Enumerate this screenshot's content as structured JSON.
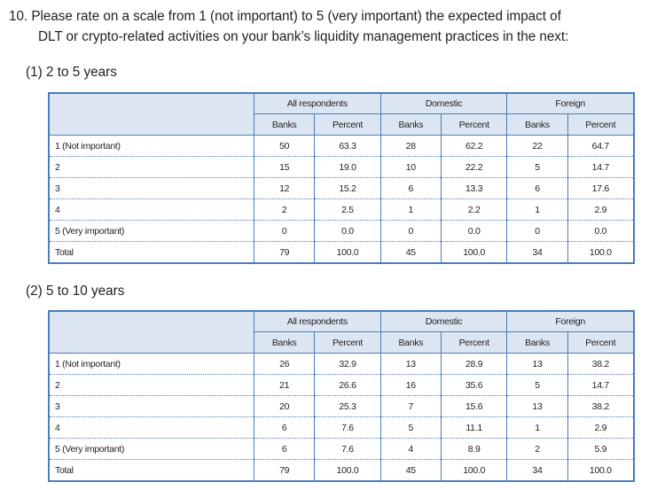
{
  "question": {
    "number": "10.",
    "line1": "Please rate on a scale from 1 (not important) to 5 (very important) the expected impact of",
    "line2": "DLT or crypto-related activities on your bank’s liquidity management practices in the next:"
  },
  "headers": {
    "groups": [
      "All respondents",
      "Domestic",
      "Foreign"
    ],
    "banks": "Banks",
    "percent": "Percent"
  },
  "sections": [
    {
      "title": "(1) 2 to 5 years",
      "rows": [
        {
          "label": "1 (Not important)",
          "values": [
            "50",
            "63.3",
            "28",
            "62.2",
            "22",
            "64.7"
          ]
        },
        {
          "label": "2",
          "values": [
            "15",
            "19.0",
            "10",
            "22.2",
            "5",
            "14.7"
          ]
        },
        {
          "label": "3",
          "values": [
            "12",
            "15.2",
            "6",
            "13.3",
            "6",
            "17.6"
          ]
        },
        {
          "label": "4",
          "values": [
            "2",
            "2.5",
            "1",
            "2.2",
            "1",
            "2.9"
          ]
        },
        {
          "label": "5 (Very important)",
          "values": [
            "0",
            "0.0",
            "0",
            "0.0",
            "0",
            "0.0"
          ]
        },
        {
          "label": "Total",
          "values": [
            "79",
            "100.0",
            "45",
            "100.0",
            "34",
            "100.0"
          ]
        }
      ]
    },
    {
      "title": "(2) 5 to 10 years",
      "rows": [
        {
          "label": "1 (Not important)",
          "values": [
            "26",
            "32.9",
            "13",
            "28.9",
            "13",
            "38.2"
          ]
        },
        {
          "label": "2",
          "values": [
            "21",
            "26.6",
            "16",
            "35.6",
            "5",
            "14.7"
          ]
        },
        {
          "label": "3",
          "values": [
            "20",
            "25.3",
            "7",
            "15.6",
            "13",
            "38.2"
          ]
        },
        {
          "label": "4",
          "values": [
            "6",
            "7.6",
            "5",
            "11.1",
            "1",
            "2.9"
          ]
        },
        {
          "label": "5 (Very important)",
          "values": [
            "6",
            "7.6",
            "4",
            "8.9",
            "2",
            "5.9"
          ]
        },
        {
          "label": "Total",
          "values": [
            "79",
            "100.0",
            "45",
            "100.0",
            "34",
            "100.0"
          ]
        }
      ]
    }
  ]
}
